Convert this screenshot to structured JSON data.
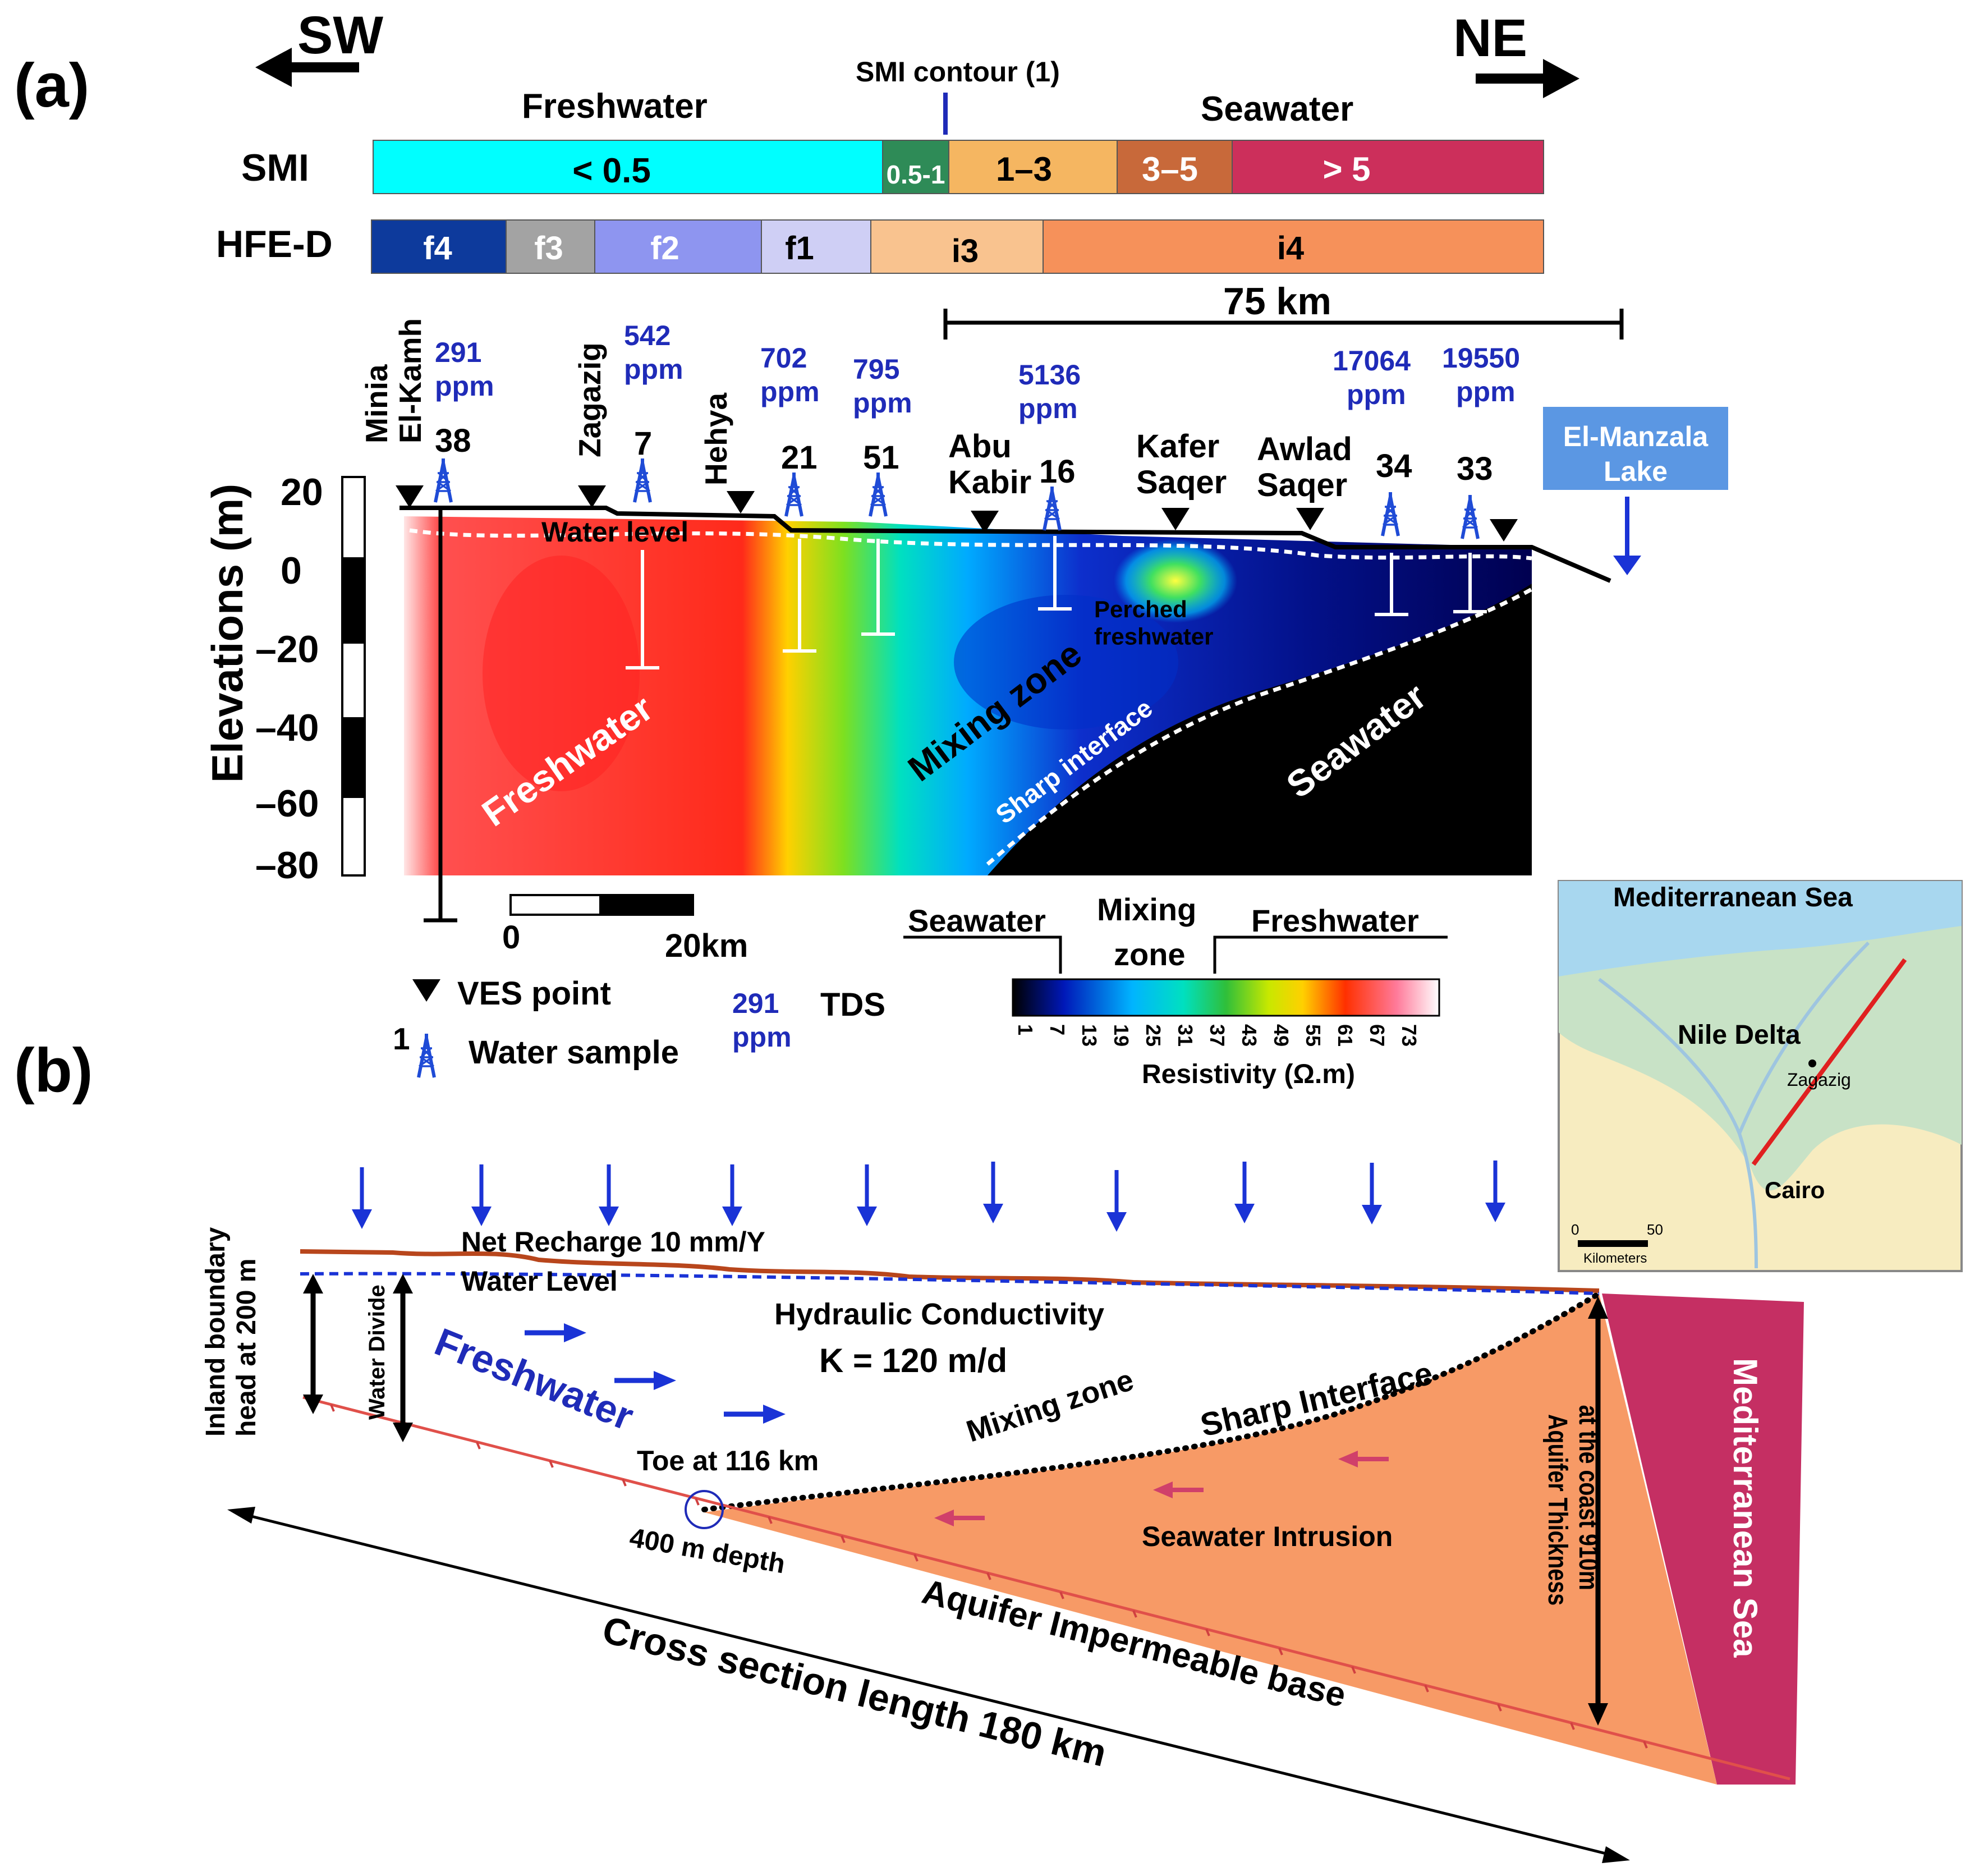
{
  "panel_a": {
    "label": "(a)",
    "dir_left": "SW",
    "dir_right": "NE",
    "freshwater_label": "Freshwater",
    "seawater_label": "Seawater",
    "smi_contour": "SMI contour (1)",
    "smi_label": "SMI",
    "smi_bands": [
      {
        "label": "< 0.5",
        "color": "#00ffff"
      },
      {
        "label": "0.5-1",
        "color": "#2e8b57"
      },
      {
        "label": "1–3",
        "color": "#f5b661"
      },
      {
        "label": "3–5",
        "color": "#c8693a"
      },
      {
        "label": "> 5",
        "color": "#cc2f5b"
      }
    ],
    "hfe_label": "HFE-D",
    "hfe_bands": [
      {
        "label": "f4",
        "color": "#0d3a9c"
      },
      {
        "label": "f3",
        "color": "#a3a3a3"
      },
      {
        "label": "f2",
        "color": "#8e95f0"
      },
      {
        "label": "f1",
        "color": "#cfcff5"
      },
      {
        "label": "i3",
        "color": "#f9c38f"
      },
      {
        "label": "i4",
        "color": "#f6915a"
      }
    ],
    "distance_label": "75 km",
    "y_axis_label": "Elevations (m)",
    "y_ticks": [
      "20",
      "0",
      "–20",
      "–40",
      "–60",
      "–80"
    ],
    "locations": [
      {
        "name": "Minia"
      },
      {
        "name": "El-Kamh"
      },
      {
        "name": "Zagazig"
      },
      {
        "name": "Hehya"
      },
      {
        "name": "Abu Kabir"
      },
      {
        "name": "Kafer Saqer"
      },
      {
        "name": "Awlad Saqer"
      }
    ],
    "wells": [
      {
        "id": "38",
        "tds": "291",
        "unit": "ppm"
      },
      {
        "id": "7",
        "tds": "542",
        "unit": "ppm"
      },
      {
        "id": "21",
        "tds": "702",
        "unit": "ppm"
      },
      {
        "id": "51",
        "tds": "795",
        "unit": "ppm"
      },
      {
        "id": "16",
        "tds": "5136",
        "unit": "ppm"
      },
      {
        "id": "34",
        "tds": "17064",
        "unit": "ppm"
      },
      {
        "id": "33",
        "tds": "19550",
        "unit": "ppm"
      }
    ],
    "lake_label": "El-Manzala Lake",
    "section_labels": {
      "water_level": "Water level",
      "perched": "Perched freshwater",
      "freshwater": "Freshwater",
      "mixing": "Mixing zone",
      "sharp": "Sharp interface",
      "seawater": "Seawater"
    },
    "scale_bar": {
      "start": "0",
      "end": "20km"
    },
    "legend": {
      "ves": "VES point",
      "water_sample": "Water sample",
      "sample_no": "1",
      "tds_value": "291",
      "tds_unit": "ppm",
      "tds_label": "TDS",
      "seawater": "Seawater",
      "mixing": "Mixing zone",
      "freshwater": "Freshwater",
      "resistivity_ticks": [
        "1",
        "7",
        "13",
        "19",
        "25",
        "31",
        "37",
        "43",
        "49",
        "55",
        "61",
        "67",
        "73"
      ],
      "resistivity_label": "Resistivity (Ω.m)"
    }
  },
  "inset_map": {
    "sea": "Mediterranean Sea",
    "delta": "Nile Delta",
    "city1": "Zagazig",
    "city2": "Cairo",
    "scale_0": "0",
    "scale_50": "50",
    "scale_unit": "Kilometers"
  },
  "panel_b": {
    "label": "(b)",
    "inland_boundary": "Inland boundary head at 200 m",
    "water_divide": "Water Divide",
    "net_recharge": "Net Recharge 10 mm/Y",
    "water_level": "Water Level",
    "freshwater": "Freshwater",
    "hydraulic_conductivity": "Hydraulic Conductivity",
    "k_value": "K = 120 m/d",
    "mixing_zone": "Mixing zone",
    "sharp_interface": "Sharp Interface",
    "toe": "Toe at 116 km",
    "depth": "400 m depth",
    "seawater_intrusion": "Seawater Intrusion",
    "aquifer_thickness": "Aquifer Thickness at the coast 910m",
    "impermeable_base": "Aquifer Impermeable base",
    "section_length": "Cross section length 180 km",
    "sea": "Mediterranean Sea"
  },
  "colors": {
    "blue_text": "#1f2bb8",
    "arrow_blue": "#1a33d6",
    "seawater_orange": "#f79a66",
    "sea_magenta": "#c52f63",
    "lake_blue": "#5b97e3"
  }
}
